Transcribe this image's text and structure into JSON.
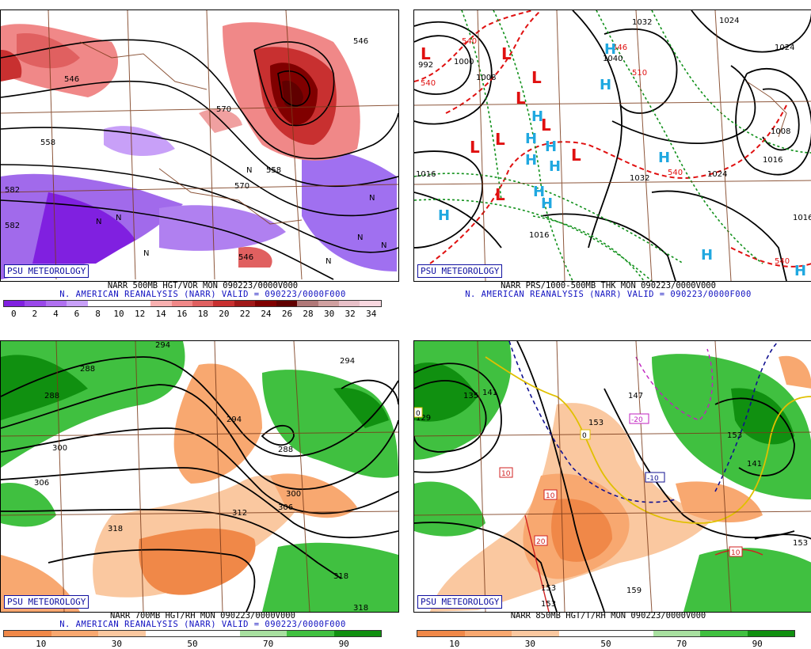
{
  "badge_text": "PSU METEOROLOGY",
  "panels": [
    {
      "id": "p1",
      "title": "NARR 500MB HGT/VOR MON 090223/0000V000",
      "subtitle": "N. AMERICAN REANALYSIS (NARR) VALID = 090223/0000F000",
      "colorbar": {
        "colors": [
          "#8020e0",
          "#9a48ea",
          "#b070f0",
          "#c8a0f8",
          "#ffffff",
          "#ffffff",
          "#ffffff",
          "#f8b0b0",
          "#f08888",
          "#e06060",
          "#c83030",
          "#a01818",
          "#800000",
          "#600000",
          "#b07878",
          "#d0a0a0",
          "#e8c0c8",
          "#f8d8e0"
        ],
        "labels": [
          "0",
          "2",
          "4",
          "6",
          "8",
          "10",
          "12",
          "14",
          "16",
          "18",
          "20",
          "22",
          "24",
          "26",
          "28",
          "30",
          "32",
          "34"
        ]
      },
      "contour_labels": [
        "546",
        "546",
        "558",
        "570",
        "582",
        "558",
        "570",
        "582",
        "546"
      ],
      "symbols": [
        "N",
        "N",
        "N",
        "N",
        "N",
        "N",
        "N",
        "N"
      ]
    },
    {
      "id": "p2",
      "title": "NARR PRS/1000-500MB THK MON 090223/0000V000",
      "subtitle": "N. AMERICAN REANALYSIS (NARR) VALID = 090223/0000F000",
      "contour_labels": [
        "992",
        "1000",
        "1008",
        "1016",
        "1032",
        "1040",
        "1024",
        "1024",
        "1032",
        "1008",
        "1016",
        "1016",
        "1024",
        "1016",
        "540",
        "540",
        "540",
        "540",
        "546",
        "510"
      ],
      "symbols": [
        "L",
        "L",
        "L",
        "L",
        "L",
        "L",
        "L",
        "L",
        "L",
        "H",
        "H",
        "H",
        "H",
        "H",
        "H",
        "H",
        "H",
        "H",
        "H",
        "H",
        "H",
        "H"
      ]
    },
    {
      "id": "p3",
      "title": "NARR 700MB HGT/RH MON 090223/0000V000",
      "subtitle": "N. AMERICAN REANALYSIS (NARR) VALID = 090223/0000F000",
      "colorbar": {
        "colors": [
          "#f08848",
          "#f8a870",
          "#fac8a0",
          "#ffffff",
          "#ffffff",
          "#a8e0a0",
          "#40c040",
          "#109010"
        ],
        "labels": [
          "10",
          "30",
          "50",
          "70",
          "90"
        ]
      },
      "contour_labels": [
        "288",
        "294",
        "288",
        "300",
        "306",
        "294",
        "288",
        "300",
        "312",
        "306",
        "318",
        "318",
        "318",
        "294"
      ]
    },
    {
      "id": "p4",
      "title": "NARR 850MB HGT/T/RH MON 090223/0000V000",
      "subtitle": "",
      "colorbar": {
        "colors": [
          "#f08848",
          "#f8a870",
          "#fac8a0",
          "#ffffff",
          "#ffffff",
          "#a8e0a0",
          "#40c040",
          "#109010"
        ],
        "labels": [
          "10",
          "30",
          "50",
          "70",
          "90"
        ]
      },
      "contour_labels": [
        "129",
        "135",
        "141",
        "153",
        "147",
        "153",
        "141",
        "153",
        "153",
        "159",
        "153"
      ],
      "temp_labels": [
        "0",
        "0",
        "-10",
        "-20",
        "10",
        "10",
        "20",
        "10"
      ]
    }
  ]
}
